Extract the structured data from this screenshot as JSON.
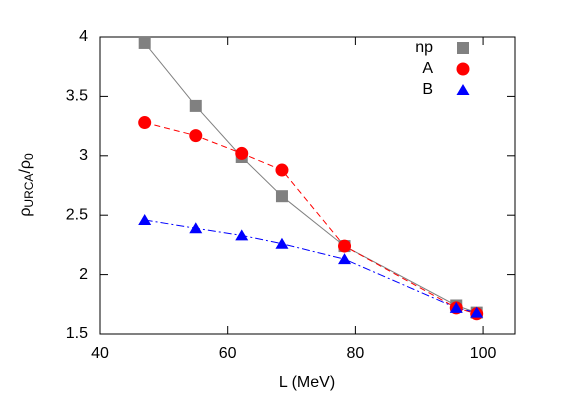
{
  "chart_data": {
    "type": "line",
    "x_label": "L (MeV)",
    "y_label": [
      "ρ",
      "URCA",
      "/ρ",
      "0"
    ],
    "x": [
      47,
      55,
      62.2,
      68.5,
      78.3,
      95.8,
      99
    ],
    "series": [
      {
        "name": "np",
        "color": "#808080",
        "marker": "square",
        "dash": "solid",
        "values": [
          3.95,
          3.42,
          2.99,
          2.66,
          2.24,
          1.74,
          1.68
        ]
      },
      {
        "name": "A",
        "color": "#ff0000",
        "marker": "circle",
        "dash": "dashed",
        "values": [
          3.28,
          3.17,
          3.02,
          2.88,
          2.24,
          1.72,
          1.67
        ]
      },
      {
        "name": "B",
        "color": "#0000ff",
        "marker": "triangle",
        "dash": "dashdot",
        "values": [
          2.46,
          2.39,
          2.33,
          2.26,
          2.13,
          1.72,
          1.68
        ]
      }
    ],
    "xlim": [
      40,
      105
    ],
    "xticks": [
      40,
      60,
      80,
      100
    ],
    "ylim": [
      1.5,
      4
    ],
    "yticks": [
      1.5,
      2,
      2.5,
      3,
      3.5,
      4
    ],
    "legend": "top-right"
  }
}
